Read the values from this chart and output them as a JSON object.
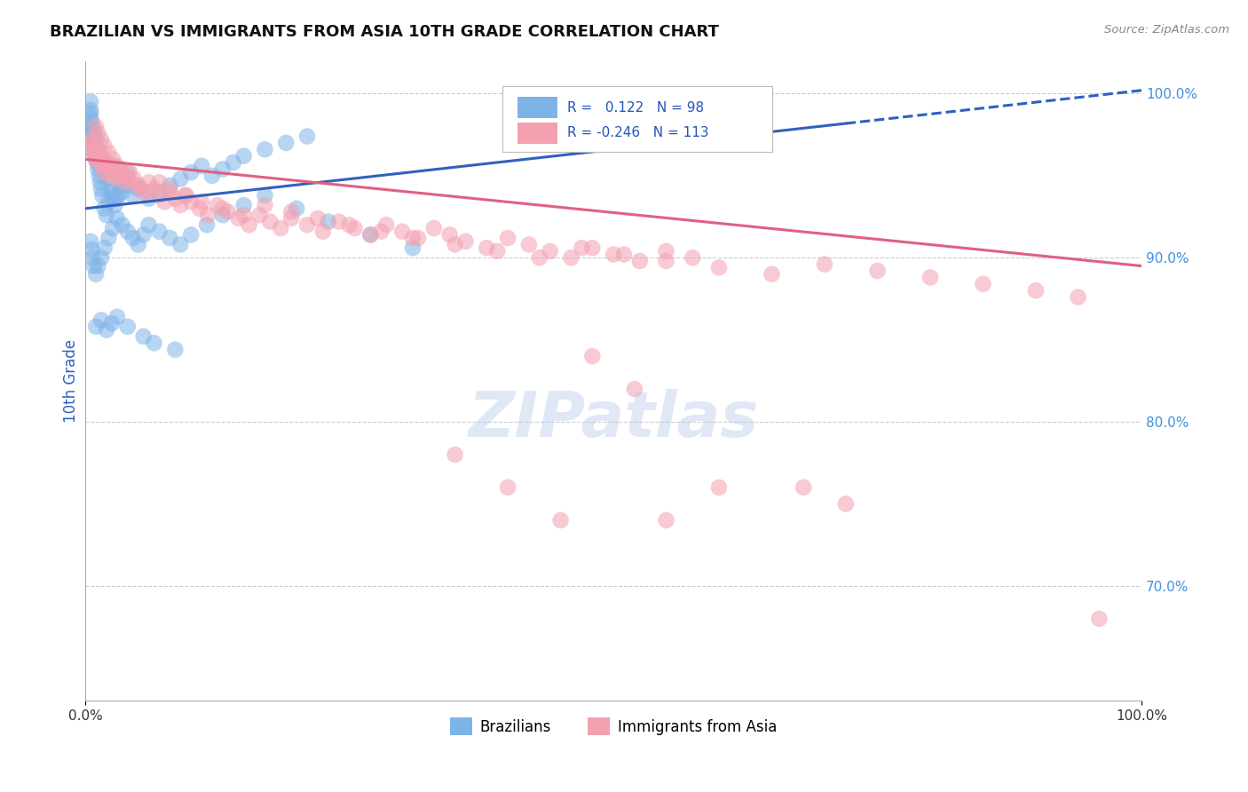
{
  "title": "BRAZILIAN VS IMMIGRANTS FROM ASIA 10TH GRADE CORRELATION CHART",
  "source_text": "Source: ZipAtlas.com",
  "ylabel": "10th Grade",
  "xlim": [
    0.0,
    1.0
  ],
  "ylim": [
    0.63,
    1.02
  ],
  "yticks": [
    0.7,
    0.8,
    0.9,
    1.0
  ],
  "ytick_labels": [
    "70.0%",
    "80.0%",
    "90.0%",
    "100.0%"
  ],
  "xticks": [
    0.0,
    1.0
  ],
  "xtick_labels": [
    "0.0%",
    "100.0%"
  ],
  "legend_R_blue": "0.122",
  "legend_N_blue": "98",
  "legend_R_pink": "-0.246",
  "legend_N_pink": "113",
  "blue_color": "#7EB3E8",
  "pink_color": "#F4A0B0",
  "trend_blue_color": "#3060C0",
  "trend_pink_color": "#E06080",
  "watermark_text": "ZIPatlas",
  "blue_trend_start_y": 0.93,
  "blue_trend_end_y": 1.002,
  "pink_trend_start_y": 0.96,
  "pink_trend_end_y": 0.895,
  "blue_scatter_x": [
    0.005,
    0.005,
    0.005,
    0.005,
    0.005,
    0.006,
    0.006,
    0.007,
    0.008,
    0.008,
    0.009,
    0.01,
    0.01,
    0.011,
    0.012,
    0.012,
    0.013,
    0.014,
    0.015,
    0.016,
    0.018,
    0.02,
    0.022,
    0.024,
    0.026,
    0.028,
    0.03,
    0.033,
    0.036,
    0.04,
    0.005,
    0.006,
    0.007,
    0.008,
    0.009,
    0.01,
    0.012,
    0.014,
    0.016,
    0.018,
    0.02,
    0.025,
    0.03,
    0.035,
    0.04,
    0.045,
    0.05,
    0.06,
    0.07,
    0.08,
    0.09,
    0.1,
    0.11,
    0.12,
    0.13,
    0.14,
    0.15,
    0.17,
    0.19,
    0.21,
    0.005,
    0.006,
    0.007,
    0.008,
    0.01,
    0.012,
    0.015,
    0.018,
    0.022,
    0.026,
    0.03,
    0.035,
    0.04,
    0.045,
    0.05,
    0.055,
    0.06,
    0.07,
    0.08,
    0.09,
    0.1,
    0.115,
    0.13,
    0.15,
    0.17,
    0.2,
    0.23,
    0.27,
    0.31,
    0.01,
    0.015,
    0.02,
    0.025,
    0.03,
    0.04,
    0.055,
    0.065,
    0.085
  ],
  "blue_scatter_y": [
    0.97,
    0.98,
    0.99,
    0.995,
    0.985,
    0.975,
    0.965,
    0.972,
    0.968,
    0.978,
    0.964,
    0.96,
    0.972,
    0.958,
    0.954,
    0.966,
    0.95,
    0.946,
    0.942,
    0.938,
    0.93,
    0.926,
    0.934,
    0.94,
    0.936,
    0.932,
    0.938,
    0.944,
    0.948,
    0.952,
    0.988,
    0.982,
    0.976,
    0.97,
    0.974,
    0.968,
    0.962,
    0.956,
    0.96,
    0.954,
    0.948,
    0.942,
    0.936,
    0.94,
    0.944,
    0.938,
    0.942,
    0.936,
    0.94,
    0.944,
    0.948,
    0.952,
    0.956,
    0.95,
    0.954,
    0.958,
    0.962,
    0.966,
    0.97,
    0.974,
    0.91,
    0.905,
    0.9,
    0.895,
    0.89,
    0.895,
    0.9,
    0.906,
    0.912,
    0.918,
    0.924,
    0.92,
    0.916,
    0.912,
    0.908,
    0.914,
    0.92,
    0.916,
    0.912,
    0.908,
    0.914,
    0.92,
    0.926,
    0.932,
    0.938,
    0.93,
    0.922,
    0.914,
    0.906,
    0.858,
    0.862,
    0.856,
    0.86,
    0.864,
    0.858,
    0.852,
    0.848,
    0.844
  ],
  "pink_scatter_x": [
    0.005,
    0.006,
    0.007,
    0.008,
    0.009,
    0.01,
    0.011,
    0.012,
    0.013,
    0.014,
    0.015,
    0.016,
    0.018,
    0.02,
    0.022,
    0.024,
    0.026,
    0.028,
    0.03,
    0.032,
    0.035,
    0.038,
    0.042,
    0.046,
    0.05,
    0.055,
    0.06,
    0.065,
    0.07,
    0.075,
    0.08,
    0.085,
    0.09,
    0.095,
    0.1,
    0.108,
    0.116,
    0.125,
    0.135,
    0.145,
    0.155,
    0.165,
    0.175,
    0.185,
    0.195,
    0.21,
    0.225,
    0.24,
    0.255,
    0.27,
    0.285,
    0.3,
    0.315,
    0.33,
    0.345,
    0.36,
    0.38,
    0.4,
    0.42,
    0.44,
    0.46,
    0.48,
    0.5,
    0.525,
    0.55,
    0.575,
    0.01,
    0.012,
    0.015,
    0.018,
    0.022,
    0.026,
    0.03,
    0.035,
    0.04,
    0.05,
    0.06,
    0.07,
    0.08,
    0.095,
    0.11,
    0.13,
    0.15,
    0.17,
    0.195,
    0.22,
    0.25,
    0.28,
    0.31,
    0.35,
    0.39,
    0.43,
    0.47,
    0.51,
    0.55,
    0.6,
    0.65,
    0.7,
    0.75,
    0.8,
    0.85,
    0.9,
    0.94,
    0.48,
    0.52,
    0.4,
    0.45,
    0.35,
    0.6,
    0.55,
    0.68,
    0.72,
    0.96
  ],
  "pink_scatter_y": [
    0.97,
    0.966,
    0.972,
    0.968,
    0.964,
    0.96,
    0.966,
    0.962,
    0.958,
    0.964,
    0.96,
    0.956,
    0.952,
    0.958,
    0.954,
    0.95,
    0.956,
    0.952,
    0.948,
    0.954,
    0.95,
    0.946,
    0.952,
    0.948,
    0.944,
    0.94,
    0.946,
    0.942,
    0.938,
    0.934,
    0.94,
    0.936,
    0.932,
    0.938,
    0.934,
    0.93,
    0.926,
    0.932,
    0.928,
    0.924,
    0.92,
    0.926,
    0.922,
    0.918,
    0.924,
    0.92,
    0.916,
    0.922,
    0.918,
    0.914,
    0.92,
    0.916,
    0.912,
    0.918,
    0.914,
    0.91,
    0.906,
    0.912,
    0.908,
    0.904,
    0.9,
    0.906,
    0.902,
    0.898,
    0.904,
    0.9,
    0.98,
    0.976,
    0.972,
    0.968,
    0.964,
    0.96,
    0.956,
    0.952,
    0.948,
    0.944,
    0.94,
    0.946,
    0.942,
    0.938,
    0.934,
    0.93,
    0.926,
    0.932,
    0.928,
    0.924,
    0.92,
    0.916,
    0.912,
    0.908,
    0.904,
    0.9,
    0.906,
    0.902,
    0.898,
    0.894,
    0.89,
    0.896,
    0.892,
    0.888,
    0.884,
    0.88,
    0.876,
    0.84,
    0.82,
    0.76,
    0.74,
    0.78,
    0.76,
    0.74,
    0.76,
    0.75,
    0.68
  ]
}
